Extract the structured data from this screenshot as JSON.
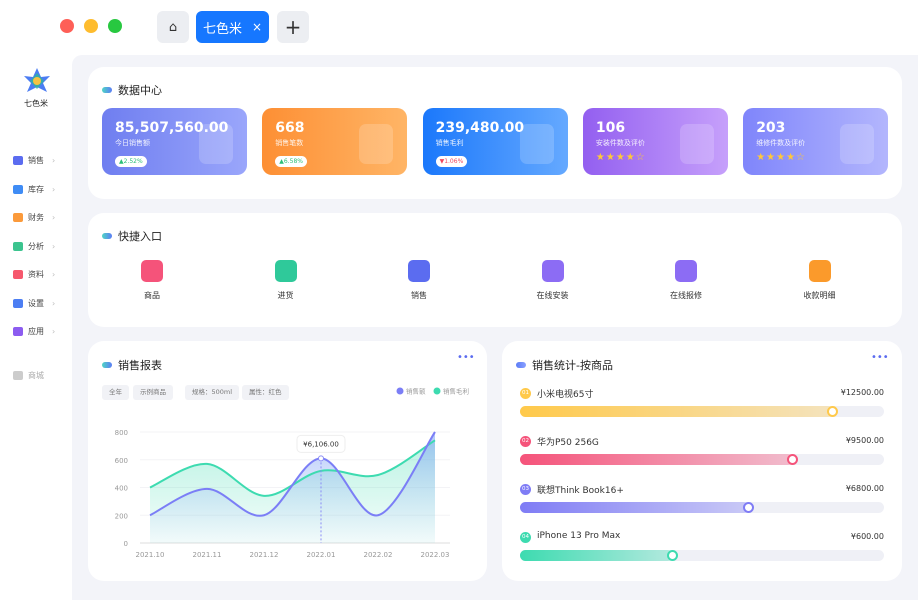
{
  "window": {
    "controls": [
      "close",
      "minimize",
      "maximize"
    ],
    "home_icon": "home-icon",
    "tab": "七色米",
    "tab_close": "×",
    "add_tab": "+"
  },
  "sidebar": {
    "brand": "七色米",
    "items": [
      {
        "label": "销售",
        "icon": "store-icon",
        "color": "#5b6cf0"
      },
      {
        "label": "库存",
        "icon": "inventory-icon",
        "color": "#3f8cf5"
      },
      {
        "label": "财务",
        "icon": "wallet-icon",
        "color": "#fb9a3b"
      },
      {
        "label": "分析",
        "icon": "analysis-icon",
        "color": "#3cc48f"
      },
      {
        "label": "资料",
        "icon": "box-icon",
        "color": "#f6586d"
      },
      {
        "label": "设置",
        "icon": "gear-icon",
        "color": "#4c7ef3"
      },
      {
        "label": "应用",
        "icon": "apps-icon",
        "color": "#8c5cf0"
      }
    ],
    "footer": "商城"
  },
  "data_center": {
    "title": "数据中心",
    "cards": [
      {
        "value": "85,507,560.00",
        "label": "今日销售额",
        "badge": "▲2.52%",
        "trend": "up"
      },
      {
        "value": "668",
        "label": "销售笔数",
        "badge": "▲6.58%",
        "trend": "up"
      },
      {
        "value": "239,480.00",
        "label": "销售毛利",
        "badge": "▼1.06%",
        "trend": "down"
      },
      {
        "value": "106",
        "label": "安装件数及评价",
        "stars": "★★★★☆",
        "rating": 4
      },
      {
        "value": "203",
        "label": "维修件数及评价",
        "stars": "★★★★☆",
        "rating": 4
      }
    ]
  },
  "quick_entry": {
    "title": "快捷入口",
    "items": [
      "商品",
      "进货",
      "销售",
      "在线安装",
      "在线报修",
      "收款明细"
    ]
  },
  "sales_report": {
    "title": "销售报表",
    "more": "•••",
    "filters": [
      "全年",
      "示例商品",
      "规格：500ml",
      "属性：红色"
    ],
    "tooltip": "¥6,106.00"
  },
  "chart_data": {
    "type": "area",
    "categories": [
      "2021.10",
      "2021.11",
      "2021.12",
      "2022.01",
      "2022.02",
      "2022.03"
    ],
    "yticks": [
      "0",
      "200",
      "400",
      "600",
      "800"
    ],
    "ylim": [
      0,
      800
    ],
    "legend": "top-right",
    "grid": true,
    "series": [
      {
        "name": "销售额",
        "color": "#7b7ef6",
        "values": [
          200,
          390,
          200,
          610,
          200,
          800
        ]
      },
      {
        "name": "销售毛利",
        "color": "#3ddbb0",
        "values": [
          400,
          570,
          340,
          520,
          490,
          740
        ]
      }
    ]
  },
  "product_stats": {
    "title": "销售统计-按商品",
    "more": "•••",
    "items": [
      {
        "rank": "01",
        "name": "小米电视65寸",
        "price": "¥12500.00",
        "fraction": 0.86,
        "color": "#ffc94a"
      },
      {
        "rank": "02",
        "name": "华为P50 256G",
        "price": "¥9500.00",
        "fraction": 0.75,
        "color": "#f5537a"
      },
      {
        "rank": "03",
        "name": "联想Think Book16+",
        "price": "¥6800.00",
        "fraction": 0.63,
        "color": "#7f7cf5"
      },
      {
        "rank": "04",
        "name": "iPhone 13 Pro Max",
        "price": "¥600.00",
        "fraction": 0.42,
        "color": "#3ddbb0"
      }
    ]
  }
}
